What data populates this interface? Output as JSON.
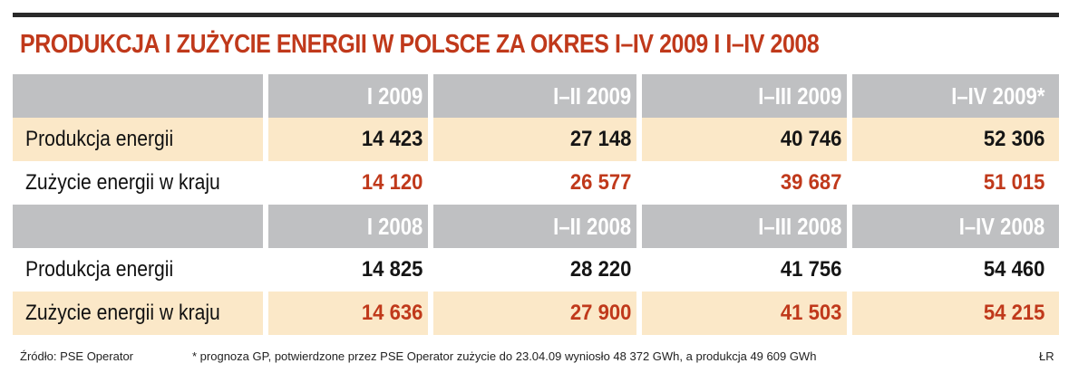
{
  "title": "PRODUKCJA I ZUŻYCIE ENERGII W POLSCE ZA OKRES I–IV 2009 I I–IV 2008",
  "colors": {
    "title": "#c0391b",
    "header_bg": "#bfc0c2",
    "shade_bg": "#fbe8c8",
    "consumption_text": "#c0391b"
  },
  "chart_data": {
    "type": "table",
    "title": "PRODUKCJA I ZUŻYCIE ENERGII W POLSCE ZA OKRES I–IV 2009 I I–IV 2008",
    "blocks": [
      {
        "columns": [
          "I 2009",
          "I–II 2009",
          "I–III 2009",
          "I–IV 2009*"
        ],
        "rows": [
          {
            "label": "Produkcja energii",
            "values": [
              "14 423",
              "27 148",
              "40 746",
              "52 306"
            ]
          },
          {
            "label": "Zużycie energii w kraju",
            "values": [
              "14 120",
              "26 577",
              "39 687",
              "51 015"
            ]
          }
        ]
      },
      {
        "columns": [
          "I 2008",
          "I–II 2008",
          "I–III 2008",
          "I–IV 2008"
        ],
        "rows": [
          {
            "label": "Produkcja energii",
            "values": [
              "14 825",
              "28 220",
              "41 756",
              "54 460"
            ]
          },
          {
            "label": "Zużycie energii w kraju",
            "values": [
              "14 636",
              "27 900",
              "41 503",
              "54 215"
            ]
          }
        ]
      }
    ]
  },
  "footer": {
    "source": "Źródło: PSE Operator",
    "note": "* prognoza GP, potwierdzone przez PSE Operator zużycie do 23.04.09 wyniosło 48 372 GWh, a produkcja 49 609 GWh",
    "author": "ŁR"
  }
}
